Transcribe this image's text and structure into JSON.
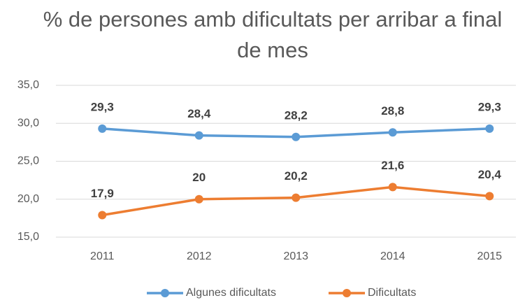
{
  "chart_data": {
    "type": "line",
    "title": "% de persones amb dificultats per arribar a final de mes",
    "categories": [
      "2011",
      "2012",
      "2013",
      "2014",
      "2015"
    ],
    "series": [
      {
        "name": "Algunes dificultats",
        "color": "#5b9bd5",
        "values": [
          29.3,
          28.4,
          28.2,
          28.8,
          29.3
        ],
        "value_labels": [
          "29,3",
          "28,4",
          "28,2",
          "28,8",
          "29,3"
        ]
      },
      {
        "name": "Dificultats",
        "color": "#ed7d31",
        "values": [
          17.9,
          20,
          20.2,
          21.6,
          20.4
        ],
        "value_labels": [
          "17,9",
          "20",
          "20,2",
          "21,6",
          "20,4"
        ]
      }
    ],
    "ylim": [
      15,
      35
    ],
    "yticks": [
      {
        "value": 15,
        "label": "15,0"
      },
      {
        "value": 20,
        "label": "20,0"
      },
      {
        "value": 25,
        "label": "25,0"
      },
      {
        "value": 30,
        "label": "30,0"
      },
      {
        "value": 35,
        "label": "35,0"
      }
    ],
    "grid": true,
    "legend": "bottom"
  }
}
